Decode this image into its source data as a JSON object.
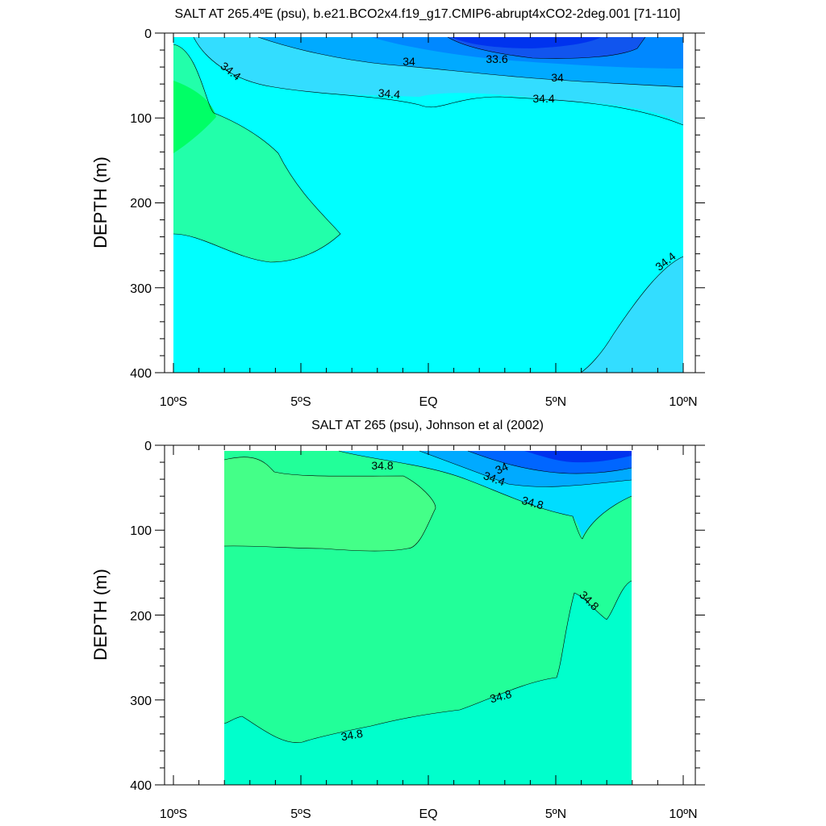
{
  "chart_data": [
    {
      "type": "contour",
      "title": "SALT AT 265.4ºE (psu), b.e21.BCO2x4.f19_g17.CMIP6-abrupt4xCO2-2deg.001 [71-110]",
      "ylabel": "DEPTH (m)",
      "xlabel": "",
      "x_ticks": [
        "10ºS",
        "5ºS",
        "EQ",
        "5ºN",
        "10ºN"
      ],
      "y_ticks": [
        "0",
        "100",
        "200",
        "300",
        "400"
      ],
      "xlim": [
        -10,
        10
      ],
      "ylim": [
        400,
        0
      ],
      "y_inverted": true,
      "levels": [
        33.6,
        34,
        34.4
      ],
      "contour_labels": [
        "34.4",
        "34",
        "33.6",
        "34",
        "34.4",
        "34.4",
        "34.4"
      ],
      "data_extent_x": [
        -10,
        10
      ],
      "fill_colors": {
        "low": "#0033ee",
        "mid": "#00ccff",
        "base": "#00ffff",
        "high": "#00ffaa"
      }
    },
    {
      "type": "contour",
      "title": "SALT AT 265 (psu), Johnson et al (2002)",
      "ylabel": "DEPTH (m)",
      "xlabel": "",
      "x_ticks": [
        "10ºS",
        "5ºS",
        "EQ",
        "5ºN",
        "10ºN"
      ],
      "y_ticks": [
        "0",
        "100",
        "200",
        "300",
        "400"
      ],
      "xlim": [
        -10,
        10
      ],
      "ylim": [
        400,
        0
      ],
      "y_inverted": true,
      "levels": [
        34,
        34.4,
        34.8
      ],
      "contour_labels": [
        "34.8",
        "34",
        "34.4",
        "34.8",
        "34.8",
        "34.8",
        "34.8"
      ],
      "data_extent_x": [
        -8,
        8
      ],
      "fill_colors": {
        "low": "#0033ee",
        "mid": "#00ccff",
        "base": "#00ffcc",
        "high": "#00ff66"
      }
    }
  ]
}
